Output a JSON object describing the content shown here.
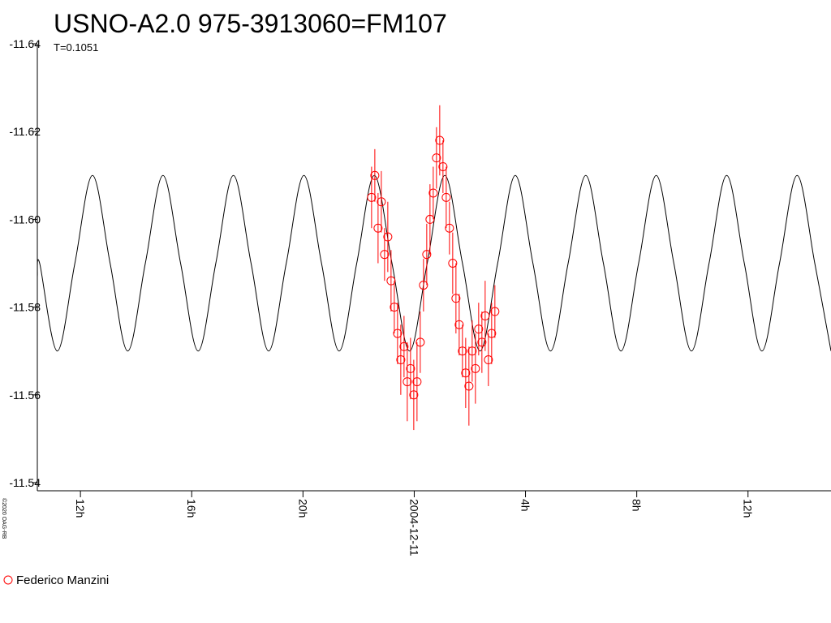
{
  "chart_data": {
    "type": "line",
    "title": "USNO-A2.0 975-3913060=FM107",
    "subtitle": "T=0.1051",
    "credit": "©2020 OAG-RB",
    "ylim": [
      -11.54,
      -11.64
    ],
    "yticks": [
      -11.64,
      -11.62,
      {
        "value": -11.6,
        "label": "-11.60"
      },
      -11.58,
      -11.56,
      -11.54
    ],
    "xlim": [
      "2004-12-10T10:27",
      "2004-12-11T14:59"
    ],
    "xticks": [
      {
        "value": "2004-12-10T12:00",
        "label": "12h"
      },
      {
        "value": "2004-12-10T16:00",
        "label": "16h"
      },
      {
        "value": "2004-12-10T20:00",
        "label": "20h"
      },
      {
        "value": "2004-12-11T00:00",
        "label": "2004-12-11"
      },
      {
        "value": "2004-12-11T04:00",
        "label": "4h"
      },
      {
        "value": "2004-12-11T08:00",
        "label": "8h"
      },
      {
        "value": "2004-12-11T12:00",
        "label": "12h"
      }
    ],
    "series": [
      {
        "color": "#000000",
        "x": [
          "2004-12-10T10:27",
          "2004-12-10T10:32",
          "2004-12-10T11:10",
          "2004-12-10T11:48",
          "2004-12-10T12:26",
          "2004-12-10T13:04",
          "2004-12-10T13:42",
          "2004-12-10T14:20",
          "2004-12-10T14:58",
          "2004-12-10T15:36",
          "2004-12-10T16:14",
          "2004-12-10T16:52",
          "2004-12-10T17:30",
          "2004-12-10T18:08",
          "2004-12-10T18:46",
          "2004-12-10T19:24",
          "2004-12-10T20:02",
          "2004-12-10T20:40",
          "2004-12-10T21:18",
          "2004-12-10T21:56",
          "2004-12-10T22:34",
          "2004-12-10T23:12",
          "2004-12-10T23:50",
          "2004-12-11T00:28",
          "2004-12-11T01:06",
          "2004-12-11T01:44",
          "2004-12-11T02:22",
          "2004-12-11T03:00",
          "2004-12-11T03:38",
          "2004-12-11T04:16",
          "2004-12-11T04:54",
          "2004-12-11T05:32",
          "2004-12-11T06:10",
          "2004-12-11T06:48",
          "2004-12-11T07:26",
          "2004-12-11T08:04",
          "2004-12-11T08:42",
          "2004-12-11T09:20",
          "2004-12-11T09:58",
          "2004-12-11T10:36",
          "2004-12-11T11:14",
          "2004-12-11T11:52",
          "2004-12-11T12:30",
          "2004-12-11T13:08",
          "2004-12-11T13:46",
          "2004-12-11T14:24",
          "2004-12-11T14:59"
        ],
        "values": [
          -11.587,
          -11.59,
          -11.57,
          -11.59,
          -11.61,
          -11.59,
          -11.57,
          -11.59,
          -11.61,
          -11.59,
          -11.57,
          -11.59,
          -11.61,
          -11.59,
          -11.57,
          -11.59,
          -11.61,
          -11.59,
          -11.57,
          -11.59,
          -11.61,
          -11.59,
          -11.57,
          -11.59,
          -11.61,
          -11.59,
          -11.57,
          -11.59,
          -11.61,
          -11.59,
          -11.57,
          -11.59,
          -11.61,
          -11.59,
          -11.57,
          -11.59,
          -11.61,
          -11.59,
          -11.57,
          -11.59,
          -11.61,
          -11.59,
          -11.57,
          -11.59,
          -11.61,
          -11.59,
          -11.57
        ]
      },
      {
        "name": "Federico Manzini",
        "color": "#ff0000",
        "x": [
          "2004-12-10T22:28",
          "2004-12-10T22:35",
          "2004-12-10T22:42",
          "2004-12-10T22:49",
          "2004-12-10T22:56",
          "2004-12-10T23:03",
          "2004-12-10T23:10",
          "2004-12-10T23:17",
          "2004-12-10T23:24",
          "2004-12-10T23:31",
          "2004-12-10T23:38",
          "2004-12-10T23:45",
          "2004-12-10T23:52",
          "2004-12-10T23:59",
          "2004-12-11T00:06",
          "2004-12-11T00:13",
          "2004-12-11T00:20",
          "2004-12-11T00:27",
          "2004-12-11T00:34",
          "2004-12-11T00:41",
          "2004-12-11T00:48",
          "2004-12-11T00:55",
          "2004-12-11T01:02",
          "2004-12-11T01:09",
          "2004-12-11T01:16",
          "2004-12-11T01:23",
          "2004-12-11T01:30",
          "2004-12-11T01:37",
          "2004-12-11T01:44",
          "2004-12-11T01:51",
          "2004-12-11T01:58",
          "2004-12-11T02:05",
          "2004-12-11T02:12",
          "2004-12-11T02:19",
          "2004-12-11T02:26",
          "2004-12-11T02:33",
          "2004-12-11T02:40",
          "2004-12-11T02:47",
          "2004-12-11T02:54"
        ],
        "values": [
          -11.605,
          -11.61,
          -11.598,
          -11.604,
          -11.592,
          -11.596,
          -11.586,
          -11.58,
          -11.574,
          -11.568,
          -11.571,
          -11.563,
          -11.566,
          -11.56,
          -11.563,
          -11.572,
          -11.585,
          -11.592,
          -11.6,
          -11.606,
          -11.614,
          -11.618,
          -11.612,
          -11.605,
          -11.598,
          -11.59,
          -11.582,
          -11.576,
          -11.57,
          -11.565,
          -11.562,
          -11.57,
          -11.566,
          -11.575,
          -11.572,
          -11.578,
          -11.568,
          -11.574,
          -11.579
        ],
        "errors": [
          0.007,
          0.006,
          0.008,
          0.007,
          0.006,
          0.008,
          0.007,
          0.006,
          0.007,
          0.008,
          0.007,
          0.009,
          0.007,
          0.008,
          0.009,
          0.007,
          0.006,
          0.007,
          0.008,
          0.006,
          0.007,
          0.008,
          0.006,
          0.007,
          0.006,
          0.007,
          0.008,
          0.007,
          0.006,
          0.008,
          0.009,
          0.007,
          0.008,
          0.006,
          0.007,
          0.008,
          0.006,
          0.007,
          0.006
        ]
      }
    ],
    "legend": "bottom-left"
  }
}
